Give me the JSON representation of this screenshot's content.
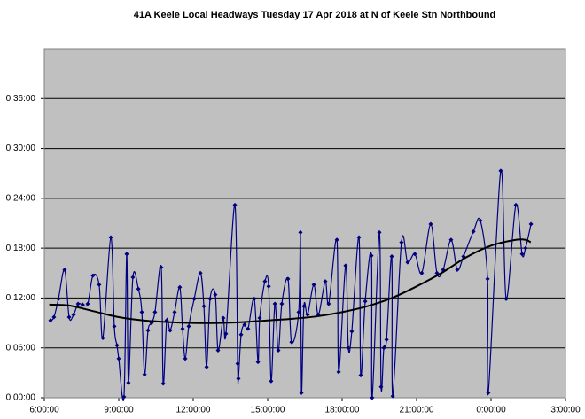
{
  "chart_data": {
    "type": "line",
    "title": "41A Keele Local Headways Tuesday 17 Apr 2018 at N of Keele Stn Northbound",
    "xlim": [
      6,
      27
    ],
    "xticks": [
      {
        "value": 6,
        "label": "6:00:00"
      },
      {
        "value": 9,
        "label": "9:00:00"
      },
      {
        "value": 12,
        "label": "12:00:00"
      },
      {
        "value": 15,
        "label": "15:00:00"
      },
      {
        "value": 18,
        "label": "18:00:00"
      },
      {
        "value": 21,
        "label": "21:00:00"
      },
      {
        "value": 24,
        "label": "0:00:00"
      },
      {
        "value": 27,
        "label": "3:00:00"
      }
    ],
    "ylim": [
      0,
      42
    ],
    "yticks": [
      {
        "value": 0,
        "label": "0:00:00"
      },
      {
        "value": 6,
        "label": "0:06:00"
      },
      {
        "value": 12,
        "label": "0:12:00"
      },
      {
        "value": 18,
        "label": "0:18:00"
      },
      {
        "value": 24,
        "label": "0:24:00"
      },
      {
        "value": 30,
        "label": "0:30:00"
      },
      {
        "value": 36,
        "label": "0:36:00"
      }
    ],
    "grid": true,
    "series": [
      {
        "color": "#000080",
        "markers": true,
        "x": [
          6.25,
          6.39,
          6.57,
          6.82,
          7.0,
          7.18,
          7.36,
          7.54,
          7.75,
          7.96,
          8.21,
          8.36,
          8.68,
          8.82,
          8.93,
          9.0,
          9.21,
          9.32,
          9.39,
          9.57,
          9.79,
          9.93,
          10.04,
          10.18,
          10.32,
          10.46,
          10.71,
          10.79,
          10.93,
          11.07,
          11.25,
          11.46,
          11.57,
          11.68,
          11.82,
          12.04,
          12.29,
          12.43,
          12.54,
          12.68,
          12.89,
          13.0,
          13.21,
          13.32,
          13.68,
          13.79,
          13.82,
          13.93,
          14.07,
          14.21,
          14.46,
          14.61,
          14.68,
          14.89,
          15.04,
          15.14,
          15.29,
          15.43,
          15.57,
          15.82,
          15.96,
          16.25,
          16.32,
          16.36,
          16.46,
          16.61,
          16.86,
          17.04,
          17.32,
          17.46,
          17.79,
          17.86,
          18.14,
          18.25,
          18.39,
          18.68,
          18.75,
          18.93,
          19.18,
          19.21,
          19.5,
          19.57,
          19.68,
          19.79,
          20.0,
          20.04,
          20.39,
          20.64,
          20.93,
          21.21,
          21.57,
          21.82,
          22.07,
          22.39,
          22.64,
          22.89,
          23.29,
          23.57,
          23.86,
          23.89,
          24.39,
          24.61,
          25.0,
          25.25,
          25.39,
          25.61
        ],
        "values": [
          9.3,
          9.7,
          11.9,
          15.4,
          9.7,
          10.0,
          11.3,
          11.2,
          11.3,
          14.7,
          13.6,
          7.2,
          19.3,
          8.6,
          6.3,
          4.7,
          0.1,
          17.3,
          1.8,
          14.5,
          13.1,
          10.3,
          2.8,
          8.1,
          9.0,
          10.3,
          15.7,
          1.7,
          9.3,
          8.1,
          10.3,
          13.3,
          8.3,
          4.7,
          8.6,
          11.9,
          15.0,
          11.0,
          3.7,
          11.9,
          12.4,
          5.7,
          9.6,
          7.7,
          23.2,
          4.1,
          2.3,
          7.6,
          8.8,
          8.3,
          11.9,
          4.3,
          9.6,
          14.0,
          13.4,
          2.0,
          11.3,
          5.7,
          11.3,
          14.3,
          6.7,
          10.3,
          19.9,
          0.6,
          11.0,
          10.0,
          13.6,
          10.0,
          14.0,
          11.3,
          19.0,
          3.1,
          15.9,
          6.0,
          8.0,
          19.3,
          2.7,
          11.6,
          17.1,
          0.0,
          19.9,
          1.3,
          6.0,
          7.0,
          17.0,
          0.2,
          18.7,
          16.3,
          17.3,
          15.0,
          20.9,
          15.0,
          15.4,
          19.0,
          15.4,
          17.0,
          20.0,
          21.3,
          14.3,
          0.6,
          27.3,
          11.9,
          23.2,
          17.3,
          18.0,
          20.9
        ]
      },
      {
        "color": "#000000",
        "markers": false,
        "x": [
          6.2,
          7,
          8,
          9,
          10,
          11,
          12,
          13,
          14,
          15,
          16,
          17,
          18,
          19,
          20,
          21,
          22,
          23,
          24,
          25,
          25.4,
          25.6
        ],
        "values": [
          11.2,
          11.1,
          10.4,
          9.7,
          9.3,
          9.1,
          9.0,
          9.0,
          9.1,
          9.3,
          9.5,
          9.8,
          10.3,
          11.0,
          12.0,
          13.4,
          15.0,
          16.9,
          18.3,
          19.0,
          19.0,
          18.7
        ]
      }
    ]
  }
}
